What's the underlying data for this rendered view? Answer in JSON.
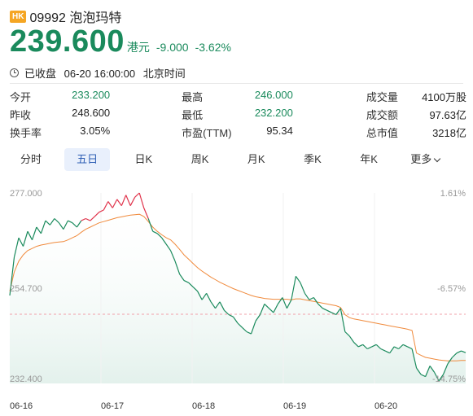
{
  "header": {
    "badge": "HK",
    "title": "09992 泡泡玛特"
  },
  "quote": {
    "price": "239.600",
    "currency": "港元",
    "change": "-9.000",
    "change_pct": "-3.62%"
  },
  "status": {
    "state": "已收盘",
    "datetime": "06-20 16:00:00",
    "timezone": "北京时间"
  },
  "stats": [
    [
      {
        "label": "今开",
        "value": "233.200",
        "color": "green"
      },
      {
        "label": "最高",
        "value": "246.000",
        "color": "green"
      },
      {
        "label": "成交量",
        "value": "4100万股"
      }
    ],
    [
      {
        "label": "昨收",
        "value": "248.600"
      },
      {
        "label": "最低",
        "value": "232.200",
        "color": "green"
      },
      {
        "label": "成交额",
        "value": "97.63亿"
      }
    ],
    [
      {
        "label": "换手率",
        "value": "3.05%"
      },
      {
        "label": "市盈(TTM)",
        "value": "95.34"
      },
      {
        "label": "总市值",
        "value": "3218亿"
      }
    ]
  ],
  "tabs": [
    {
      "label": "分时"
    },
    {
      "label": "五日",
      "active": true
    },
    {
      "label": "日K"
    },
    {
      "label": "周K"
    },
    {
      "label": "月K"
    },
    {
      "label": "季K"
    },
    {
      "label": "年K"
    },
    {
      "label": "更多",
      "dropdown": true
    }
  ],
  "chart_data": {
    "type": "line",
    "x_labels": [
      "06-16",
      "06-17",
      "06-18",
      "06-19",
      "06-20"
    ],
    "ylim": [
      232.4,
      277.0
    ],
    "y_ticks": [
      "277.000",
      "254.700",
      "232.400"
    ],
    "pct_ticks": [
      "1.61%",
      "-6.57%",
      "-14.75%"
    ],
    "prev_close": 248.6,
    "colors": {
      "down": "#1a8a5c",
      "up": "#e0334b",
      "avg": "#f08a3c",
      "area": "#e3f1ec",
      "ref": "#f0a0a8"
    },
    "series": [
      {
        "values": [
          253.0,
          262.0,
          266.5,
          264.5,
          268.0,
          266.0,
          269.0,
          267.5,
          270.5,
          269.5,
          271.0,
          270.0,
          268.5,
          270.5,
          270.0,
          269.0,
          270.5,
          271.0,
          270.5,
          271.5,
          272.5,
          273.0,
          275.0,
          273.5,
          275.5,
          274.0,
          276.5,
          274.0,
          276.0,
          277.0,
          273.5,
          271.0,
          268.0,
          267.5,
          266.5,
          265.0,
          263.5,
          261.0,
          258.0,
          256.5,
          256.0,
          255.0,
          254.0,
          252.0,
          253.5,
          251.5,
          250.0,
          251.5,
          249.5,
          248.5,
          248.0,
          246.5,
          245.5,
          244.5,
          244.0,
          247.0,
          248.5,
          251.0,
          250.0,
          249.0,
          251.0,
          252.5,
          250.0,
          252.0,
          257.5,
          256.0,
          253.5,
          252.0,
          252.5,
          251.0,
          250.0,
          249.5,
          249.0,
          248.5,
          250.0,
          244.5,
          243.5,
          242.0,
          241.0,
          241.5,
          240.5,
          241.0,
          241.5,
          240.5,
          240.0,
          239.5,
          241.0,
          240.5,
          241.5,
          241.0,
          240.5,
          236.0,
          234.5,
          234.0,
          236.5,
          235.0,
          233.0,
          234.5,
          237.0,
          238.5,
          239.5,
          240.0,
          239.6
        ],
        "avg": [
          254.0,
          258.5,
          261.0,
          262.5,
          263.5,
          264.0,
          264.5,
          264.8,
          265.0,
          265.2,
          265.4,
          265.5,
          265.6,
          266.0,
          266.5,
          267.0,
          267.8,
          268.5,
          269.0,
          269.5,
          270.0,
          270.3,
          270.6,
          270.9,
          271.2,
          271.4,
          271.6,
          271.8,
          271.9,
          272.0,
          271.5,
          270.3,
          269.0,
          268.0,
          267.2,
          266.5,
          266.0,
          265.0,
          263.8,
          262.5,
          261.5,
          260.5,
          259.5,
          258.7,
          258.0,
          257.3,
          256.7,
          256.1,
          255.6,
          255.1,
          254.6,
          254.2,
          253.8,
          253.4,
          253.0,
          252.7,
          252.5,
          252.3,
          252.2,
          252.1,
          252.1,
          252.1,
          252.1,
          252.0,
          252.2,
          252.2,
          252.0,
          251.8,
          251.6,
          251.4,
          251.2,
          251.0,
          250.8,
          250.6,
          250.2,
          248.5,
          247.8,
          247.5,
          247.3,
          247.1,
          246.9,
          246.7,
          246.5,
          246.3,
          246.1,
          245.9,
          245.7,
          245.5,
          245.3,
          245.1,
          244.8,
          239.5,
          239.0,
          238.5,
          238.3,
          238.1,
          237.9,
          237.8,
          237.7,
          237.7,
          237.7,
          237.8,
          237.8
        ]
      }
    ]
  }
}
